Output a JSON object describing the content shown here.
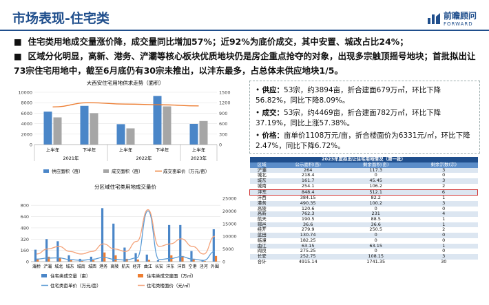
{
  "header": {
    "title": "市场表现-住宅类",
    "logo_cn": "前瞻顾问",
    "logo_en": "FORWARD"
  },
  "bullets": [
    "住宅类用地成交量涨价降，成交量同比增加57%；近92%为底价成交，其中安置、城改占比24%；",
    "区域分化明显，高新、港务、浐灞等核心板块优质地块仍是房企重点抢夺的对象，出现多宗触顶摇号地块；首批拟出让73宗住宅用地中，截至6月底仍有30宗未推出，以沣东最多，占总体未供应地块1/5。"
  ],
  "bullet_marker": "■",
  "info": {
    "rows": [
      {
        "label": "供应：",
        "text": "53宗，约3894亩，折合建面679万㎡，环比下降56.82%，同比下降8.09%。"
      },
      {
        "label": "成交：",
        "text": "53宗，约4469亩，折合建面782万㎡，环比下降37.19%，同比上涨57.38%。"
      },
      {
        "label": "价格：",
        "text": "亩单价1108万元/亩，折合楼面价为6331元/㎡，环比下降2.47%，同比下降6.72%。"
      }
    ],
    "marker": "•"
  },
  "table": {
    "caption": "2023年度拟出让住宅用地情况（第一批）",
    "headers": [
      "区域",
      "公示面积(亩)",
      "剩余面积(亩)",
      "剩余宗数(宗)"
    ],
    "rows": [
      [
        "浐灞",
        "264",
        "117.3",
        "3"
      ],
      [
        "城北",
        "218.4",
        "0",
        "0"
      ],
      [
        "城东",
        "161.7",
        "45.45",
        "3"
      ],
      [
        "城南",
        "254.1",
        "106.2",
        "2"
      ],
      [
        "沣东",
        "848.4",
        "512.1",
        "6"
      ],
      [
        "沣西",
        "384.15",
        "82.2",
        "1"
      ],
      [
        "港务",
        "490.35",
        "100.2",
        "3"
      ],
      [
        "高陵",
        "120.6",
        "0",
        "0"
      ],
      [
        "高新",
        "762.3",
        "231",
        "4"
      ],
      [
        "航天",
        "190.5",
        "88.5",
        "1"
      ],
      [
        "鄠邑",
        "36.6",
        "36.6",
        "1"
      ],
      [
        "经开",
        "279.9",
        "250.5",
        "2"
      ],
      [
        "蓝田",
        "130.74",
        "0",
        "0"
      ],
      [
        "临潼",
        "182.25",
        "0",
        "0"
      ],
      [
        "曲江",
        "63.15",
        "63.15",
        "1"
      ],
      [
        "阎良",
        "275.25",
        "0",
        "0"
      ],
      [
        "长安",
        "252.75",
        "108.15",
        "3"
      ],
      [
        "合计",
        "4915.14",
        "1741.35",
        "30"
      ]
    ],
    "highlight_row": 4
  },
  "colors": {
    "brand": "#1f4e8c",
    "supply": "#4a86c8",
    "deal": "#a6a6a6",
    "price": "#ed7d31",
    "deal_volume": "#4a86c8",
    "deal_area": "#ed7d31",
    "unit_price": "#5b9bd5",
    "floor_price": "#f4a37a",
    "highlight": "#d03030"
  },
  "chart_data": [
    {
      "type": "bar",
      "title": "大西安住宅用地供求走势（面积）",
      "categories": [
        "上半年",
        "下半年",
        "上半年",
        "下半年",
        "上半年"
      ],
      "group_labels": [
        {
          "label": "2021年",
          "span": [
            0,
            1
          ]
        },
        {
          "label": "2022年",
          "span": [
            2,
            3
          ]
        },
        {
          "label": "2023年",
          "span": [
            4,
            4
          ]
        }
      ],
      "series": [
        {
          "name": "供应面积（亩）",
          "axis": "left",
          "kind": "bar",
          "values": [
            6300,
            7400,
            3900,
            9300,
            3950
          ]
        },
        {
          "name": "成交面积（亩）",
          "axis": "left",
          "kind": "bar",
          "values": [
            5200,
            6000,
            3100,
            7300,
            4500
          ]
        },
        {
          "name": "成交亩单价（万元/亩）",
          "axis": "right",
          "kind": "line",
          "values": [
            1080,
            1200,
            1160,
            1140,
            1108
          ]
        }
      ],
      "ylim_left": [
        0,
        10000
      ],
      "yticks_left": [
        "0",
        "2000",
        "4000",
        "6000",
        "8000",
        "10000"
      ],
      "ylim_right": [
        0,
        1500
      ],
      "yticks_right": [
        "0",
        "300",
        "600",
        "900",
        "1200",
        "1500"
      ],
      "legend_position": "bottom"
    },
    {
      "type": "bar",
      "title": "分区域住宅类用地成交量价",
      "categories": [
        "灞桥",
        "浐灞",
        "城北",
        "城东",
        "城南",
        "城西",
        "港务",
        "高陵",
        "航天",
        "经开",
        "曲江",
        "长安",
        "沣东",
        "沣西",
        "空港",
        "泾河",
        "外围"
      ],
      "series": [
        {
          "name": "住宅类成交量（亩）",
          "axis": "left",
          "kind": "bar",
          "values": [
            170,
            320,
            290,
            90,
            40,
            70,
            760,
            540,
            200,
            120,
            100,
            20,
            520,
            520,
            150,
            20,
            460
          ]
        },
        {
          "name": "住宅类成交建面（万㎡）",
          "axis": "left",
          "kind": "bar",
          "values": [
            40,
            70,
            60,
            20,
            10,
            20,
            130,
            90,
            40,
            30,
            25,
            5,
            90,
            80,
            30,
            10,
            80
          ]
        },
        {
          "name": "住宅类亩单价（万元/亩）",
          "axis": "right",
          "kind": "line",
          "values": [
            1000,
            1400,
            1500,
            800,
            500,
            900,
            1700,
            900,
            600,
            1500,
            20000,
            800,
            1200,
            2000,
            1000,
            500,
            4000
          ]
        },
        {
          "name": "住宅类楼面价（元/㎡）",
          "axis": "right",
          "kind": "line",
          "values": [
            3000,
            5000,
            6000,
            4000,
            3000,
            4000,
            7000,
            5000,
            4000,
            8000,
            20500,
            6000,
            7000,
            9000,
            6000,
            3000,
            10000
          ]
        }
      ],
      "ylim_left": [
        0,
        900
      ],
      "yticks_left": [
        "0",
        "160",
        "320",
        "480",
        "640",
        "800"
      ],
      "ylim_right": [
        0,
        25000
      ],
      "yticks_right": [
        "0",
        "5000",
        "10000",
        "15000",
        "20000",
        "25000"
      ],
      "legend_position": "bottom"
    }
  ]
}
